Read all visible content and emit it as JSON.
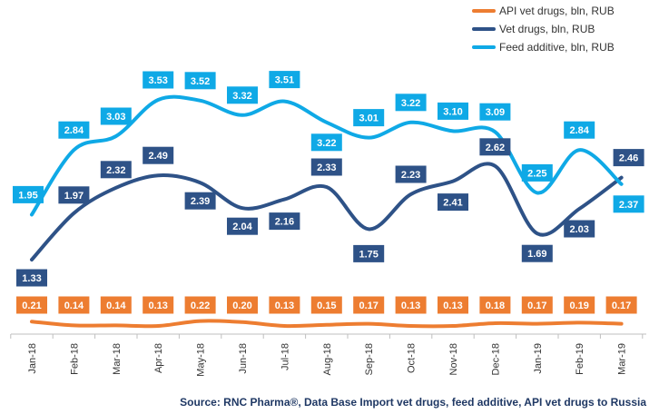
{
  "colors": {
    "api": "#ed7d31",
    "vet": "#2e5287",
    "feed": "#0fa9e6",
    "axis": "#bfbfbf",
    "source": "#1f3864"
  },
  "source_text": "Source: RNC Pharma®, Data Base Import vet drugs, feed additive, API vet drugs to Russia",
  "chart_data": {
    "type": "line",
    "categories": [
      "Jan-18",
      "Feb-18",
      "Mar-18",
      "Apr-18",
      "May-18",
      "Jun-18",
      "Jul-18",
      "Aug-18",
      "Sep-18",
      "Oct-18",
      "Nov-18",
      "Dec-18",
      "Jan-19",
      "Feb-19",
      "Mar-19"
    ],
    "series": [
      {
        "key": "api",
        "name": "API vet drugs, bln, RUB",
        "values": [
          0.21,
          0.14,
          0.14,
          0.13,
          0.22,
          0.2,
          0.13,
          0.15,
          0.17,
          0.13,
          0.13,
          0.18,
          0.17,
          0.19,
          0.17
        ]
      },
      {
        "key": "vet",
        "name": "Vet drugs, bln, RUB",
        "values": [
          1.33,
          1.97,
          2.32,
          2.49,
          2.39,
          2.04,
          2.16,
          2.33,
          1.75,
          2.23,
          2.41,
          2.62,
          1.69,
          2.03,
          2.46
        ]
      },
      {
        "key": "feed",
        "name": "Feed additive, bln, RUB",
        "values": [
          1.95,
          2.84,
          3.03,
          3.53,
          3.52,
          3.32,
          3.51,
          3.22,
          3.01,
          3.22,
          3.1,
          3.09,
          2.25,
          2.84,
          2.37
        ]
      }
    ],
    "legend": "top-right",
    "grid": false
  }
}
